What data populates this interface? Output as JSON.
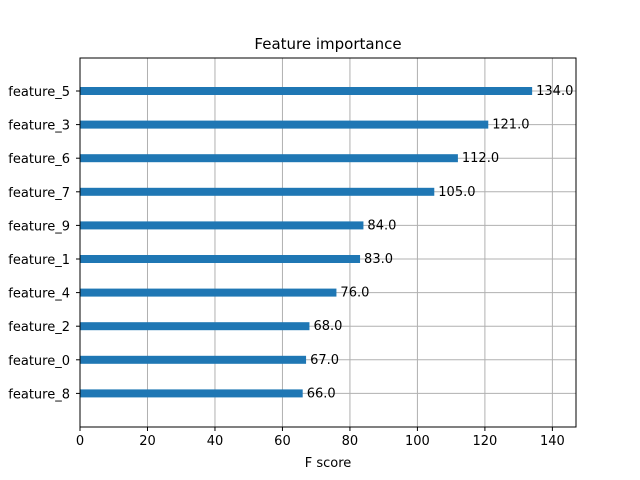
{
  "chart_data": {
    "type": "bar",
    "orientation": "horizontal",
    "title": "Feature importance",
    "xlabel": "F score",
    "ylabel": "",
    "xlim": [
      0,
      147
    ],
    "xticks": [
      0,
      20,
      40,
      60,
      80,
      100,
      120,
      140
    ],
    "grid": true,
    "bar_color": "#1f77b4",
    "categories": [
      "feature_5",
      "feature_3",
      "feature_6",
      "feature_7",
      "feature_9",
      "feature_1",
      "feature_4",
      "feature_2",
      "feature_0",
      "feature_8"
    ],
    "values": [
      134.0,
      121.0,
      112.0,
      105.0,
      84.0,
      83.0,
      76.0,
      68.0,
      67.0,
      66.0
    ],
    "value_labels": [
      "134.0",
      "121.0",
      "112.0",
      "105.0",
      "84.0",
      "83.0",
      "76.0",
      "68.0",
      "67.0",
      "66.0"
    ]
  }
}
